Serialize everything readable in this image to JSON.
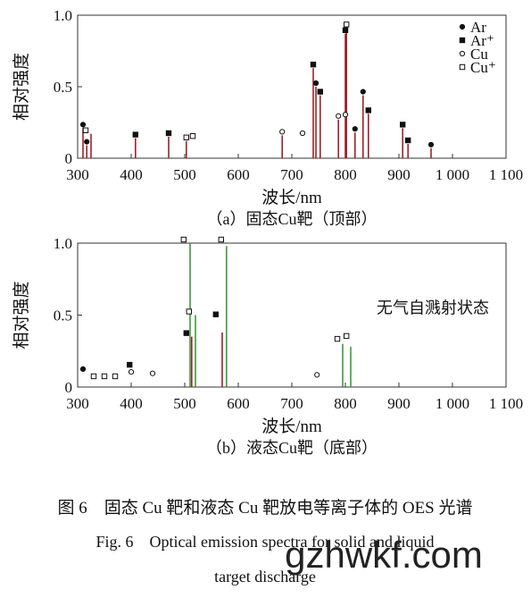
{
  "chart_data": [
    {
      "type": "spectrum",
      "caption": "（a）固态Cu靶（顶部）",
      "xlabel": "波长/nm",
      "ylabel": "相对强度",
      "xlim": [
        300,
        1100
      ],
      "ylim": [
        0,
        1.0
      ],
      "xticks": [
        300,
        400,
        500,
        600,
        700,
        800,
        900,
        {
          "value": 1000,
          "label": "1 000"
        },
        {
          "value": 1100,
          "label": "1 100"
        }
      ],
      "yticks": [
        0,
        0.5,
        {
          "value": 1.0,
          "label": "1.0"
        }
      ],
      "lines": [
        {
          "color": "#a0202a",
          "x": [
            310,
            317,
            325,
            408,
            470,
            503,
            682,
            740,
            745,
            753,
            787,
            800,
            802,
            818,
            833,
            843,
            907,
            917,
            960
          ],
          "values": [
            0.21,
            0.09,
            0.17,
            0.14,
            0.15,
            0.12,
            0.16,
            0.63,
            0.5,
            0.44,
            0.27,
            0.87,
            0.91,
            0.18,
            0.44,
            0.31,
            0.21,
            0.1,
            0.07
          ]
        }
      ],
      "series": [
        {
          "name": "Ar",
          "marker": "filled-circle",
          "x": [
            310,
            317,
            745,
            818,
            833,
            960
          ],
          "values": [
            0.21,
            0.09,
            0.5,
            0.18,
            0.44,
            0.07
          ]
        },
        {
          "name": "Ar⁺",
          "marker": "filled-square",
          "x": [
            408,
            470,
            740,
            753,
            800,
            843,
            907,
            917
          ],
          "values": [
            0.14,
            0.15,
            0.63,
            0.44,
            0.87,
            0.31,
            0.21,
            0.1
          ]
        },
        {
          "name": "Cu",
          "marker": "open-circle",
          "x": [
            682,
            720,
            787,
            800
          ],
          "values": [
            0.16,
            0.15,
            0.27,
            0.28
          ]
        },
        {
          "name": "Cu⁺",
          "marker": "open-square",
          "x": [
            315,
            503,
            515,
            802
          ],
          "values": [
            0.17,
            0.12,
            0.13,
            0.91
          ]
        }
      ]
    },
    {
      "type": "spectrum",
      "caption": "（b）液态Cu靶（底部）",
      "xlabel": "波长/nm",
      "ylabel": "相对强度",
      "annotation": "无气自溅射状态",
      "xlim": [
        300,
        1100
      ],
      "ylim": [
        0,
        1.0
      ],
      "xticks": [
        300,
        400,
        500,
        600,
        700,
        800,
        900,
        {
          "value": 1000,
          "label": "1 000"
        },
        {
          "value": 1100,
          "label": "1 100"
        }
      ],
      "yticks": [
        0,
        0.5,
        {
          "value": 1.0,
          "label": "1.0"
        }
      ],
      "lines": [
        {
          "color": "#3a9a3a",
          "x": [
            510,
            520,
            578,
            795,
            810
          ],
          "values": [
            1.0,
            0.5,
            0.98,
            0.3,
            0.28
          ]
        },
        {
          "color": "#a0202a",
          "x": [
            513,
            570
          ],
          "values": [
            0.35,
            0.38
          ]
        }
      ],
      "series": [
        {
          "name": "Ar",
          "marker": "filled-circle",
          "x": [
            310
          ],
          "values": [
            0.1
          ]
        },
        {
          "name": "Ar⁺",
          "marker": "filled-square",
          "x": [
            397,
            503,
            558
          ],
          "values": [
            0.13,
            0.35,
            0.48
          ]
        },
        {
          "name": "Cu",
          "marker": "open-circle",
          "x": [
            400,
            440,
            747
          ],
          "values": [
            0.08,
            0.07,
            0.06
          ]
        },
        {
          "name": "Cu⁺",
          "marker": "open-square",
          "x": [
            330,
            350,
            370,
            498,
            508,
            568,
            785,
            802
          ],
          "values": [
            0.05,
            0.05,
            0.05,
            1.0,
            0.5,
            1.0,
            0.31,
            0.33
          ]
        }
      ]
    }
  ],
  "figure": {
    "caption_zh": "图 6　固态 Cu 靶和液态 Cu 靶放电等离子体的 OES 光谱",
    "caption_en_1": "Fig. 6　Optical emission spectra for solid and liquid",
    "caption_en_2": "target discharge",
    "watermark": "gzhwkf.com"
  }
}
